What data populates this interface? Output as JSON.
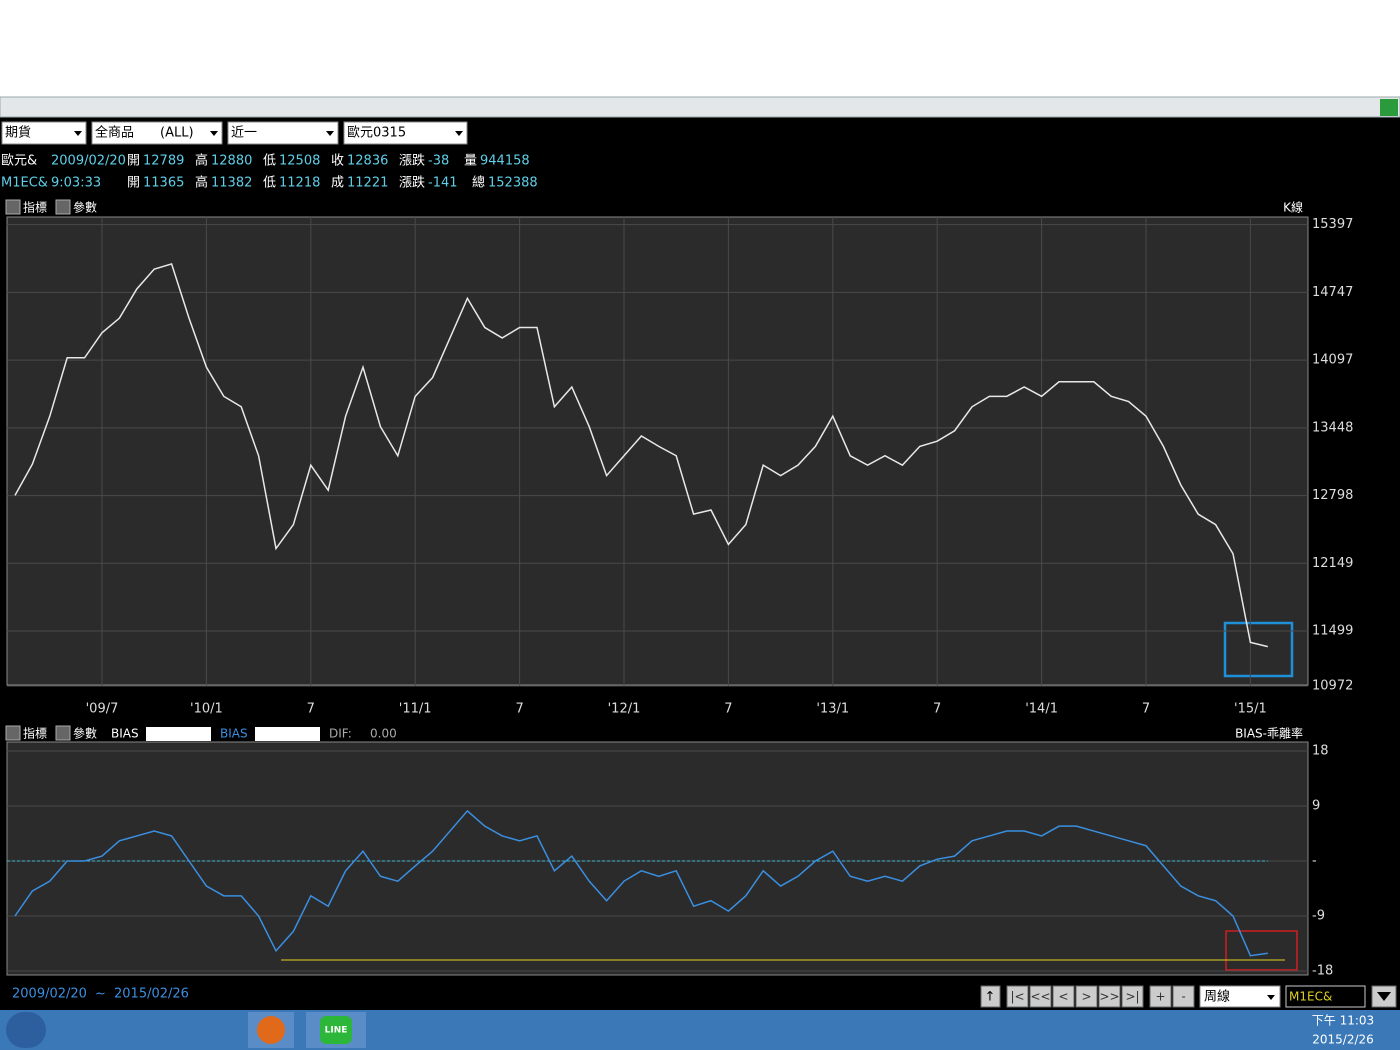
{
  "toolbar": {
    "selects": [
      "期貨",
      "全商品　　(ALL)",
      "近一",
      "歐元0315"
    ]
  },
  "quotes": [
    {
      "name": "歐元&",
      "time": "2009/02/20",
      "fields": [
        [
          "開",
          "12789"
        ],
        [
          "高",
          "12880"
        ],
        [
          "低",
          "12508"
        ],
        [
          "收",
          "12836"
        ],
        [
          "漲跌",
          "-38"
        ],
        [
          "量",
          "944158"
        ]
      ]
    },
    {
      "name": "M1EC&",
      "time": "9:03:33",
      "fields": [
        [
          "開",
          "11365"
        ],
        [
          "高",
          "11382"
        ],
        [
          "低",
          "11218"
        ],
        [
          "成",
          "11221"
        ],
        [
          "漲跌",
          "-141"
        ],
        [
          "總",
          "152388"
        ]
      ]
    }
  ],
  "upper_panel": {
    "buttons": [
      "指標",
      "參數"
    ],
    "caption": "K線"
  },
  "lower_panel": {
    "buttons": [
      "指標",
      "參數"
    ],
    "series_labels": [
      "BIAS",
      "BIAS"
    ],
    "dif_label": "DIF:",
    "dif_value": "0.00",
    "caption": "BIAS-乖離率"
  },
  "chart_data": [
    {
      "type": "line",
      "color": "#e8e8e8",
      "categories": [
        null,
        null,
        null,
        null,
        null,
        "'09/7",
        null,
        null,
        null,
        null,
        null,
        "'10/1",
        null,
        null,
        null,
        null,
        null,
        "7",
        null,
        null,
        null,
        null,
        null,
        "'11/1",
        null,
        null,
        null,
        null,
        null,
        "7",
        null,
        null,
        null,
        null,
        null,
        "'12/1",
        null,
        null,
        null,
        null,
        null,
        "7",
        null,
        null,
        null,
        null,
        null,
        "'13/1",
        null,
        null,
        null,
        null,
        null,
        "7",
        null,
        null,
        null,
        null,
        null,
        "'14/1",
        null,
        null,
        null,
        null,
        null,
        "7",
        null,
        null,
        null,
        null,
        null,
        "'15/1",
        null
      ],
      "values": [
        12800,
        13100,
        13560,
        14120,
        14120,
        14360,
        14500,
        14780,
        14970,
        15020,
        14500,
        14030,
        13750,
        13650,
        13180,
        12290,
        12520,
        13090,
        12850,
        13560,
        14030,
        13460,
        13180,
        13750,
        13930,
        14310,
        14690,
        14410,
        14310,
        14410,
        14410,
        13650,
        13840,
        13460,
        12990,
        13180,
        13370,
        13270,
        13180,
        12620,
        12660,
        12330,
        12520,
        13090,
        12990,
        13090,
        13270,
        13560,
        13180,
        13090,
        13180,
        13090,
        13270,
        13320,
        13420,
        13650,
        13750,
        13750,
        13840,
        13750,
        13890,
        13890,
        13890,
        13750,
        13700,
        13560,
        13270,
        12900,
        12620,
        12520,
        12240,
        11390,
        11350
      ],
      "ylim": [
        10972,
        15470
      ],
      "yticks": [
        15397,
        14747,
        14097,
        13448,
        12798,
        12149,
        11499,
        10972
      ],
      "grid": true
    },
    {
      "type": "line",
      "color": "#3b8fe0",
      "values": [
        -9,
        -4.9,
        -3.3,
        0,
        0,
        0.8,
        3.3,
        4.1,
        4.9,
        4.1,
        0,
        -4.1,
        -5.7,
        -5.7,
        -9,
        -14.7,
        -11.5,
        -5.7,
        -7.4,
        -1.6,
        1.6,
        -2.5,
        -3.3,
        -0.8,
        1.6,
        4.9,
        8.2,
        5.7,
        4.1,
        3.3,
        4.1,
        -1.6,
        0.8,
        -3.3,
        -6.5,
        -3.3,
        -1.6,
        -2.5,
        -1.6,
        -7.4,
        -6.5,
        -8.2,
        -5.7,
        -1.6,
        -4.1,
        -2.5,
        0,
        1.6,
        -2.5,
        -3.3,
        -2.5,
        -3.3,
        -0.8,
        0.3,
        0.8,
        3.3,
        4.1,
        4.9,
        4.9,
        4.1,
        5.7,
        5.7,
        4.9,
        4.1,
        3.3,
        2.5,
        -0.8,
        -4.1,
        -5.7,
        -6.5,
        -9,
        -15.5,
        -15.1
      ],
      "ylim": [
        -18,
        18
      ],
      "yticks": [
        18,
        9,
        {
          "value": 0,
          "label": "-"
        },
        -9,
        -18
      ],
      "grid": true,
      "zero_line": 0,
      "reference_line": -16.2
    }
  ],
  "status": {
    "range_start": "2009/02/20",
    "range_sep": "~",
    "range_end": "2015/02/26",
    "nav": [
      "|<",
      "<<",
      "<",
      ">",
      ">>",
      ">|",
      "+",
      "-"
    ],
    "period": "周線",
    "symbol": "M1EC&"
  },
  "taskbar": {
    "app": "LINE",
    "time": "下午 11:03",
    "date": "2015/2/26"
  }
}
